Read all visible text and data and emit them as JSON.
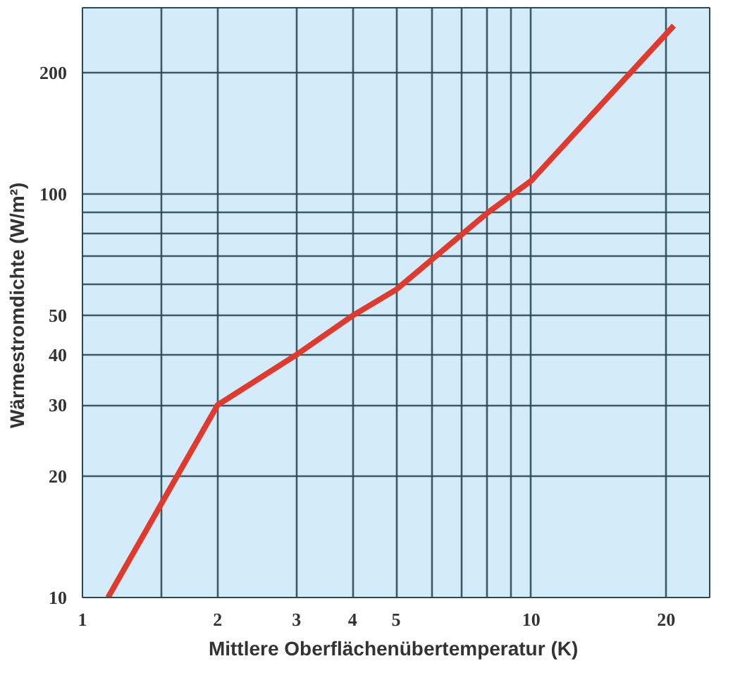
{
  "chart_data": {
    "type": "line",
    "xlabel": "Mittlere Oberflächenübertemperatur  (K)",
    "ylabel": "Wärmestromdichte  (W/m²)",
    "log": "xy",
    "grid": true,
    "marker": "none",
    "line_style": "solid",
    "xlim": [
      1,
      25
    ],
    "ylim": [
      10,
      290
    ],
    "xticks": [
      1,
      {
        "value": 1.5,
        "label": null
      },
      2,
      3,
      4,
      5,
      {
        "value": 6,
        "label": null
      },
      {
        "value": 7,
        "label": null
      },
      {
        "value": 8,
        "label": null
      },
      {
        "value": 9,
        "label": null
      },
      10,
      20
    ],
    "yticks": [
      10,
      20,
      30,
      40,
      50,
      {
        "value": 60,
        "label": null
      },
      {
        "value": 70,
        "label": null
      },
      {
        "value": 80,
        "label": null
      },
      {
        "value": 90,
        "label": null
      },
      100,
      200
    ],
    "x": [
      1.14,
      2,
      3,
      4,
      5,
      8,
      10,
      20.8
    ],
    "series": [
      {
        "color": "#e03a2e",
        "values": [
          10,
          30,
          40,
          50,
          58,
          90,
          108,
          262
        ]
      }
    ]
  }
}
